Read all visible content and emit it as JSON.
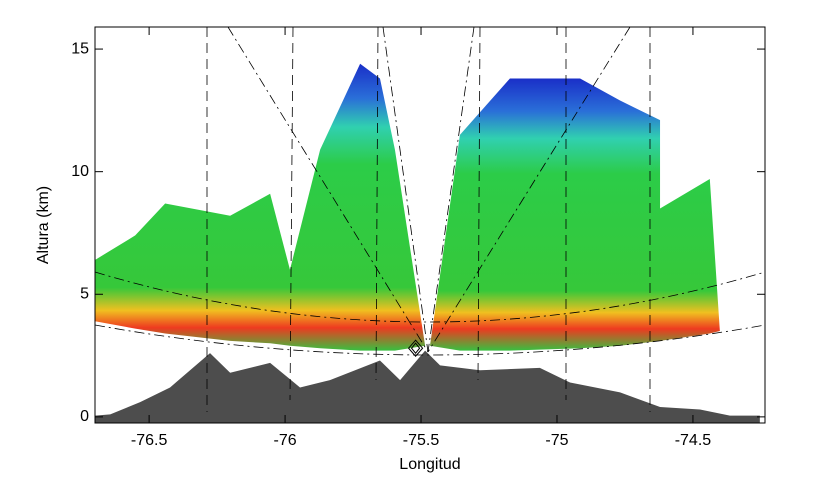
{
  "chart_data": {
    "type": "area",
    "x_label": "Longitud",
    "y_label": "Altura (km)",
    "xlim": [
      -76.699,
      -74.235
    ],
    "ylim": [
      -0.25,
      15.9
    ],
    "xticks": [
      -76.5,
      -76.0,
      -75.5,
      -75.0,
      -74.5
    ],
    "yticks": [
      0,
      5,
      10,
      15
    ],
    "series": [
      {
        "color": "#4d4d4d",
        "x": [
          -76.699,
          -76.643,
          -76.533,
          -76.423,
          -76.276,
          -76.202,
          -76.055,
          -75.945,
          -75.835,
          -75.651,
          -75.577,
          -75.485,
          -75.43,
          -75.283,
          -75.063,
          -74.952,
          -74.768,
          -74.621,
          -74.474,
          -74.364,
          -74.254
        ],
        "values": [
          0.05,
          0.1,
          0.6,
          1.2,
          2.6,
          1.8,
          2.2,
          1.2,
          1.5,
          2.3,
          1.5,
          2.7,
          2.1,
          1.9,
          2.0,
          1.4,
          1.0,
          0.4,
          0.3,
          0.05,
          0.05
        ]
      },
      {
        "color": "#22c83c",
        "x": [
          -76.699,
          -76.551,
          -76.441,
          -76.202,
          -76.055,
          -75.982,
          -75.871,
          -75.724,
          -75.651,
          -75.596,
          -75.485
        ],
        "values": [
          6.4,
          7.4,
          8.7,
          8.2,
          9.1,
          6.0,
          10.9,
          14.4,
          13.8,
          10.9,
          2.9
        ],
        "base": [
          3.9,
          3.6,
          3.4,
          3.1,
          3.0,
          2.9,
          2.8,
          2.7,
          2.7,
          2.7,
          2.9
        ]
      },
      {
        "color": "#22c83c",
        "x": [
          -75.467,
          -75.357,
          -75.173,
          -74.915,
          -74.768,
          -74.621,
          -74.621,
          -74.438,
          -74.401
        ],
        "values": [
          2.9,
          11.5,
          13.8,
          13.8,
          12.9,
          12.1,
          8.5,
          9.7,
          3.5
        ],
        "base": [
          2.9,
          2.7,
          2.7,
          2.8,
          2.9,
          3.1,
          3.1,
          3.4,
          3.5
        ]
      }
    ],
    "radar": {
      "x": -75.52,
      "y": 2.8
    }
  }
}
